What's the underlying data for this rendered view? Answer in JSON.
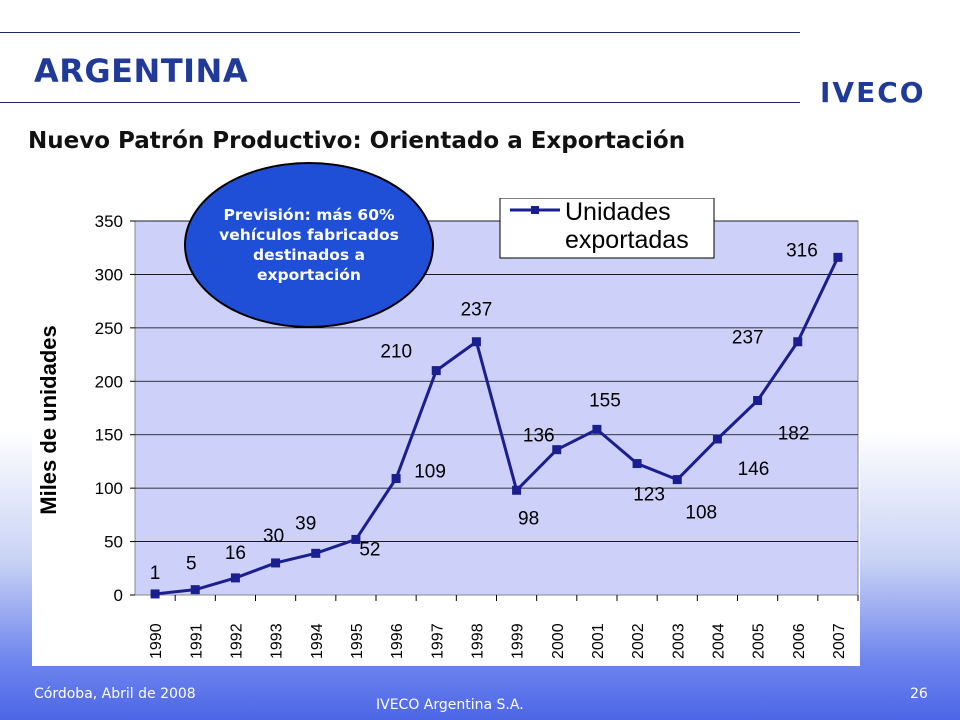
{
  "header": {
    "title": "ARGENTINA",
    "logo_text": "IVECO",
    "subtitle": "Nuevo Patrón Productivo: Orientado a Exportación"
  },
  "callout": {
    "text": "Previsión: más 60% vehículos fabricados destinados a exportación"
  },
  "footer": {
    "left": "Córdoba, Abril de 2008",
    "center": "IVECO Argentina S.A.",
    "page": "26"
  },
  "chart_data": {
    "type": "line",
    "ylabel": "Miles de unidades",
    "ylim": [
      0,
      350
    ],
    "yticks": [
      0,
      50,
      100,
      150,
      200,
      250,
      300,
      350
    ],
    "grid": true,
    "legend_position": "top-right",
    "categories": [
      "1990",
      "1991",
      "1992",
      "1993",
      "1994",
      "1995",
      "1996",
      "1997",
      "1998",
      "1999",
      "2000",
      "2001",
      "2002",
      "2003",
      "2004",
      "2005",
      "2006",
      "2007"
    ],
    "series": [
      {
        "name": "Unidades exportadas",
        "values": [
          1,
          5,
          16,
          30,
          39,
          52,
          109,
          210,
          237,
          98,
          136,
          155,
          123,
          108,
          146,
          182,
          237,
          316
        ]
      }
    ],
    "data_labels": [
      "1",
      "5",
      "16",
      "30",
      "39",
      "52",
      "109",
      "210",
      "237",
      "98",
      "136",
      "155",
      "123",
      "108",
      "146",
      "182",
      "237",
      "316"
    ],
    "colors": {
      "line": "#1a1f8f",
      "plot_bg": "#cdd0f8"
    }
  }
}
